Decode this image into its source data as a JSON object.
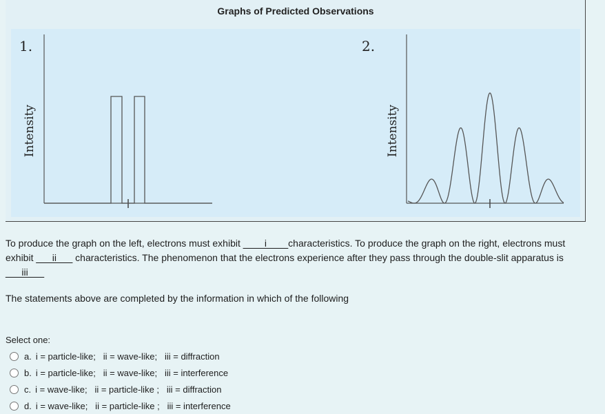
{
  "figure": {
    "title": "Graphs of Predicted Observations",
    "left_graph": {
      "number": "1.",
      "ylabel": "Intensity",
      "pattern": "two narrow rectangular peaks"
    },
    "right_graph": {
      "number": "2.",
      "ylabel": "Intensity",
      "pattern": "interference fringes, tallest at center"
    }
  },
  "question": {
    "p1": "To produce the graph on the left, electrons must exhibit ",
    "blank1": "____i____",
    "p2": "characteristics. To produce the graph on the right, electrons must exhibit ",
    "blank2": "___ii___",
    "p3": " characteristics. The phenomenon that the electrons experience after they pass through the double-slit apparatus is ",
    "blank3": "___iii___"
  },
  "instruction": "The statements above are completed by the information in which of the following",
  "select_label": "Select one:",
  "options": [
    {
      "letter": "a.",
      "text": "i = particle-like;   ii = wave-like;   iii = diffraction"
    },
    {
      "letter": "b.",
      "text": "i = particle-like;   ii = wave-like;   iii = interference"
    },
    {
      "letter": "c.",
      "text": "i = wave-like;   ii = particle-like ;   iii = diffraction"
    },
    {
      "letter": "d.",
      "text": "i = wave-like;   ii = particle-like ;   iii = interference"
    }
  ]
}
